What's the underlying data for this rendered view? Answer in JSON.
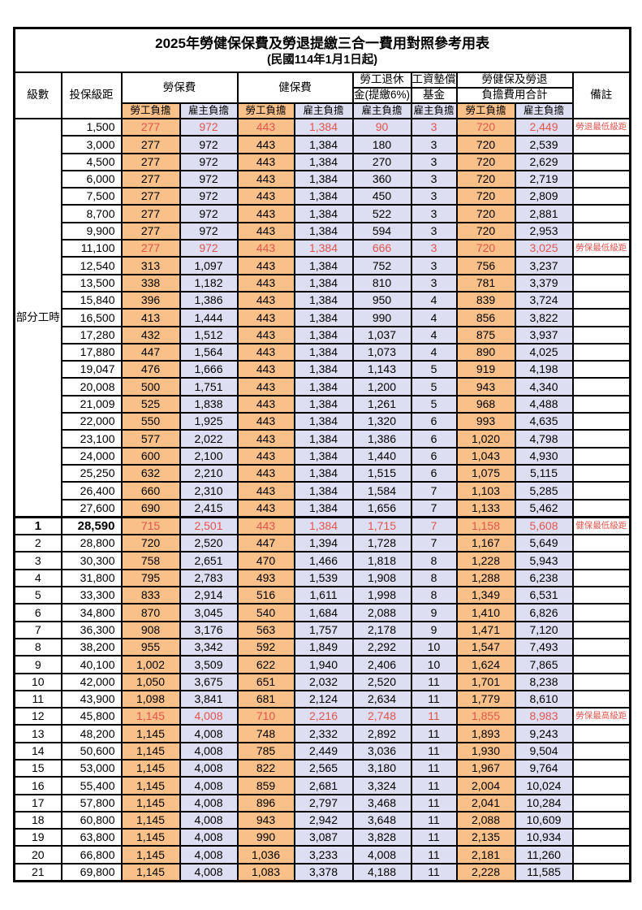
{
  "title": "2025年勞健保保費及勞退提繳三合一費用對照參考用表",
  "subtitle": "(民國114年1月1日起)",
  "colors": {
    "employee_bg": "#F9C189",
    "employer_bg": "#DEDEF2",
    "highlight_red": "#E2554E"
  },
  "header": {
    "level": "級數",
    "bracket": "投保級距",
    "labor": "勞保費",
    "health": "健保費",
    "pension_line1": "勞工退休",
    "pension_line2": "金(提繳6%)",
    "fund_line1": "工資墊償",
    "fund_line2": "基金",
    "total_line1": "勞健保及勞退",
    "total_line2": "負擔費用合計",
    "remark": "備註",
    "employee": "勞工負擔",
    "employer": "雇主負擔"
  },
  "table": {
    "part_time_label": "部分工時",
    "rows": [
      {
        "part_time_rowspan": 23,
        "bracket": "1,500",
        "labor_emp": "277",
        "labor_er": "972",
        "health_emp": "443",
        "health_er": "1,384",
        "pension_er": "90",
        "fund_er": "3",
        "total_emp": "720",
        "total_er": "2,449",
        "remark": "勞退最低級距",
        "red": true
      },
      {
        "bracket": "3,000",
        "labor_emp": "277",
        "labor_er": "972",
        "health_emp": "443",
        "health_er": "1,384",
        "pension_er": "180",
        "fund_er": "3",
        "total_emp": "720",
        "total_er": "2,539",
        "remark": ""
      },
      {
        "bracket": "4,500",
        "labor_emp": "277",
        "labor_er": "972",
        "health_emp": "443",
        "health_er": "1,384",
        "pension_er": "270",
        "fund_er": "3",
        "total_emp": "720",
        "total_er": "2,629",
        "remark": ""
      },
      {
        "bracket": "6,000",
        "labor_emp": "277",
        "labor_er": "972",
        "health_emp": "443",
        "health_er": "1,384",
        "pension_er": "360",
        "fund_er": "3",
        "total_emp": "720",
        "total_er": "2,719",
        "remark": ""
      },
      {
        "bracket": "7,500",
        "labor_emp": "277",
        "labor_er": "972",
        "health_emp": "443",
        "health_er": "1,384",
        "pension_er": "450",
        "fund_er": "3",
        "total_emp": "720",
        "total_er": "2,809",
        "remark": ""
      },
      {
        "bracket": "8,700",
        "labor_emp": "277",
        "labor_er": "972",
        "health_emp": "443",
        "health_er": "1,384",
        "pension_er": "522",
        "fund_er": "3",
        "total_emp": "720",
        "total_er": "2,881",
        "remark": ""
      },
      {
        "bracket": "9,900",
        "labor_emp": "277",
        "labor_er": "972",
        "health_emp": "443",
        "health_er": "1,384",
        "pension_er": "594",
        "fund_er": "3",
        "total_emp": "720",
        "total_er": "2,953",
        "remark": ""
      },
      {
        "bracket": "11,100",
        "labor_emp": "277",
        "labor_er": "972",
        "health_emp": "443",
        "health_er": "1,384",
        "pension_er": "666",
        "fund_er": "3",
        "total_emp": "720",
        "total_er": "3,025",
        "remark": "勞保最低級距",
        "red": true
      },
      {
        "bracket": "12,540",
        "labor_emp": "313",
        "labor_er": "1,097",
        "health_emp": "443",
        "health_er": "1,384",
        "pension_er": "752",
        "fund_er": "3",
        "total_emp": "756",
        "total_er": "3,237",
        "remark": ""
      },
      {
        "bracket": "13,500",
        "labor_emp": "338",
        "labor_er": "1,182",
        "health_emp": "443",
        "health_er": "1,384",
        "pension_er": "810",
        "fund_er": "3",
        "total_emp": "781",
        "total_er": "3,379",
        "remark": ""
      },
      {
        "bracket": "15,840",
        "labor_emp": "396",
        "labor_er": "1,386",
        "health_emp": "443",
        "health_er": "1,384",
        "pension_er": "950",
        "fund_er": "4",
        "total_emp": "839",
        "total_er": "3,724",
        "remark": ""
      },
      {
        "bracket": "16,500",
        "labor_emp": "413",
        "labor_er": "1,444",
        "health_emp": "443",
        "health_er": "1,384",
        "pension_er": "990",
        "fund_er": "4",
        "total_emp": "856",
        "total_er": "3,822",
        "remark": ""
      },
      {
        "bracket": "17,280",
        "labor_emp": "432",
        "labor_er": "1,512",
        "health_emp": "443",
        "health_er": "1,384",
        "pension_er": "1,037",
        "fund_er": "4",
        "total_emp": "875",
        "total_er": "3,937",
        "remark": ""
      },
      {
        "bracket": "17,880",
        "labor_emp": "447",
        "labor_er": "1,564",
        "health_emp": "443",
        "health_er": "1,384",
        "pension_er": "1,073",
        "fund_er": "4",
        "total_emp": "890",
        "total_er": "4,025",
        "remark": ""
      },
      {
        "bracket": "19,047",
        "labor_emp": "476",
        "labor_er": "1,666",
        "health_emp": "443",
        "health_er": "1,384",
        "pension_er": "1,143",
        "fund_er": "5",
        "total_emp": "919",
        "total_er": "4,198",
        "remark": ""
      },
      {
        "bracket": "20,008",
        "labor_emp": "500",
        "labor_er": "1,751",
        "health_emp": "443",
        "health_er": "1,384",
        "pension_er": "1,200",
        "fund_er": "5",
        "total_emp": "943",
        "total_er": "4,340",
        "remark": ""
      },
      {
        "bracket": "21,009",
        "labor_emp": "525",
        "labor_er": "1,838",
        "health_emp": "443",
        "health_er": "1,384",
        "pension_er": "1,261",
        "fund_er": "5",
        "total_emp": "968",
        "total_er": "4,488",
        "remark": ""
      },
      {
        "bracket": "22,000",
        "labor_emp": "550",
        "labor_er": "1,925",
        "health_emp": "443",
        "health_er": "1,384",
        "pension_er": "1,320",
        "fund_er": "6",
        "total_emp": "993",
        "total_er": "4,635",
        "remark": ""
      },
      {
        "bracket": "23,100",
        "labor_emp": "577",
        "labor_er": "2,022",
        "health_emp": "443",
        "health_er": "1,384",
        "pension_er": "1,386",
        "fund_er": "6",
        "total_emp": "1,020",
        "total_er": "4,798",
        "remark": ""
      },
      {
        "bracket": "24,000",
        "labor_emp": "600",
        "labor_er": "2,100",
        "health_emp": "443",
        "health_er": "1,384",
        "pension_er": "1,440",
        "fund_er": "6",
        "total_emp": "1,043",
        "total_er": "4,930",
        "remark": ""
      },
      {
        "bracket": "25,250",
        "labor_emp": "632",
        "labor_er": "2,210",
        "health_emp": "443",
        "health_er": "1,384",
        "pension_er": "1,515",
        "fund_er": "6",
        "total_emp": "1,075",
        "total_er": "5,115",
        "remark": ""
      },
      {
        "bracket": "26,400",
        "labor_emp": "660",
        "labor_er": "2,310",
        "health_emp": "443",
        "health_er": "1,384",
        "pension_er": "1,584",
        "fund_er": "7",
        "total_emp": "1,103",
        "total_er": "5,285",
        "remark": ""
      },
      {
        "bracket": "27,600",
        "labor_emp": "690",
        "labor_er": "2,415",
        "health_emp": "443",
        "health_er": "1,384",
        "pension_er": "1,656",
        "fund_er": "7",
        "total_emp": "1,133",
        "total_er": "5,462",
        "remark": ""
      },
      {
        "level": "1",
        "bracket": "28,590",
        "labor_emp": "715",
        "labor_er": "2,501",
        "health_emp": "443",
        "health_er": "1,384",
        "pension_er": "1,715",
        "fund_er": "7",
        "total_emp": "1,158",
        "total_er": "5,608",
        "remark": "健保最低級距",
        "red": true,
        "thick_top": true
      },
      {
        "level": "2",
        "bracket": "28,800",
        "labor_emp": "720",
        "labor_er": "2,520",
        "health_emp": "447",
        "health_er": "1,394",
        "pension_er": "1,728",
        "fund_er": "7",
        "total_emp": "1,167",
        "total_er": "5,649",
        "remark": ""
      },
      {
        "level": "3",
        "bracket": "30,300",
        "labor_emp": "758",
        "labor_er": "2,651",
        "health_emp": "470",
        "health_er": "1,466",
        "pension_er": "1,818",
        "fund_er": "8",
        "total_emp": "1,228",
        "total_er": "5,943",
        "remark": ""
      },
      {
        "level": "4",
        "bracket": "31,800",
        "labor_emp": "795",
        "labor_er": "2,783",
        "health_emp": "493",
        "health_er": "1,539",
        "pension_er": "1,908",
        "fund_er": "8",
        "total_emp": "1,288",
        "total_er": "6,238",
        "remark": ""
      },
      {
        "level": "5",
        "bracket": "33,300",
        "labor_emp": "833",
        "labor_er": "2,914",
        "health_emp": "516",
        "health_er": "1,611",
        "pension_er": "1,998",
        "fund_er": "8",
        "total_emp": "1,349",
        "total_er": "6,531",
        "remark": ""
      },
      {
        "level": "6",
        "bracket": "34,800",
        "labor_emp": "870",
        "labor_er": "3,045",
        "health_emp": "540",
        "health_er": "1,684",
        "pension_er": "2,088",
        "fund_er": "9",
        "total_emp": "1,410",
        "total_er": "6,826",
        "remark": ""
      },
      {
        "level": "7",
        "bracket": "36,300",
        "labor_emp": "908",
        "labor_er": "3,176",
        "health_emp": "563",
        "health_er": "1,757",
        "pension_er": "2,178",
        "fund_er": "9",
        "total_emp": "1,471",
        "total_er": "7,120",
        "remark": ""
      },
      {
        "level": "8",
        "bracket": "38,200",
        "labor_emp": "955",
        "labor_er": "3,342",
        "health_emp": "592",
        "health_er": "1,849",
        "pension_er": "2,292",
        "fund_er": "10",
        "total_emp": "1,547",
        "total_er": "7,493",
        "remark": ""
      },
      {
        "level": "9",
        "bracket": "40,100",
        "labor_emp": "1,002",
        "labor_er": "3,509",
        "health_emp": "622",
        "health_er": "1,940",
        "pension_er": "2,406",
        "fund_er": "10",
        "total_emp": "1,624",
        "total_er": "7,865",
        "remark": ""
      },
      {
        "level": "10",
        "bracket": "42,000",
        "labor_emp": "1,050",
        "labor_er": "3,675",
        "health_emp": "651",
        "health_er": "2,032",
        "pension_er": "2,520",
        "fund_er": "11",
        "total_emp": "1,701",
        "total_er": "8,238",
        "remark": ""
      },
      {
        "level": "11",
        "bracket": "43,900",
        "labor_emp": "1,098",
        "labor_er": "3,841",
        "health_emp": "681",
        "health_er": "2,124",
        "pension_er": "2,634",
        "fund_er": "11",
        "total_emp": "1,779",
        "total_er": "8,610",
        "remark": ""
      },
      {
        "level": "12",
        "bracket": "45,800",
        "labor_emp": "1,145",
        "labor_er": "4,008",
        "health_emp": "710",
        "health_er": "2,216",
        "pension_er": "2,748",
        "fund_er": "11",
        "total_emp": "1,855",
        "total_er": "8,983",
        "remark": "勞保最高級距",
        "red": true
      },
      {
        "level": "13",
        "bracket": "48,200",
        "labor_emp": "1,145",
        "labor_er": "4,008",
        "health_emp": "748",
        "health_er": "2,332",
        "pension_er": "2,892",
        "fund_er": "11",
        "total_emp": "1,893",
        "total_er": "9,243",
        "remark": ""
      },
      {
        "level": "14",
        "bracket": "50,600",
        "labor_emp": "1,145",
        "labor_er": "4,008",
        "health_emp": "785",
        "health_er": "2,449",
        "pension_er": "3,036",
        "fund_er": "11",
        "total_emp": "1,930",
        "total_er": "9,504",
        "remark": ""
      },
      {
        "level": "15",
        "bracket": "53,000",
        "labor_emp": "1,145",
        "labor_er": "4,008",
        "health_emp": "822",
        "health_er": "2,565",
        "pension_er": "3,180",
        "fund_er": "11",
        "total_emp": "1,967",
        "total_er": "9,764",
        "remark": ""
      },
      {
        "level": "16",
        "bracket": "55,400",
        "labor_emp": "1,145",
        "labor_er": "4,008",
        "health_emp": "859",
        "health_er": "2,681",
        "pension_er": "3,324",
        "fund_er": "11",
        "total_emp": "2,004",
        "total_er": "10,024",
        "remark": ""
      },
      {
        "level": "17",
        "bracket": "57,800",
        "labor_emp": "1,145",
        "labor_er": "4,008",
        "health_emp": "896",
        "health_er": "2,797",
        "pension_er": "3,468",
        "fund_er": "11",
        "total_emp": "2,041",
        "total_er": "10,284",
        "remark": ""
      },
      {
        "level": "18",
        "bracket": "60,800",
        "labor_emp": "1,145",
        "labor_er": "4,008",
        "health_emp": "943",
        "health_er": "2,942",
        "pension_er": "3,648",
        "fund_er": "11",
        "total_emp": "2,088",
        "total_er": "10,609",
        "remark": ""
      },
      {
        "level": "19",
        "bracket": "63,800",
        "labor_emp": "1,145",
        "labor_er": "4,008",
        "health_emp": "990",
        "health_er": "3,087",
        "pension_er": "3,828",
        "fund_er": "11",
        "total_emp": "2,135",
        "total_er": "10,934",
        "remark": ""
      },
      {
        "level": "20",
        "bracket": "66,800",
        "labor_emp": "1,145",
        "labor_er": "4,008",
        "health_emp": "1,036",
        "health_er": "3,233",
        "pension_er": "4,008",
        "fund_er": "11",
        "total_emp": "2,181",
        "total_er": "11,260",
        "remark": ""
      },
      {
        "level": "21",
        "bracket": "69,800",
        "labor_emp": "1,145",
        "labor_er": "4,008",
        "health_emp": "1,083",
        "health_er": "3,378",
        "pension_er": "4,188",
        "fund_er": "11",
        "total_emp": "2,228",
        "total_er": "11,585",
        "remark": ""
      }
    ]
  }
}
